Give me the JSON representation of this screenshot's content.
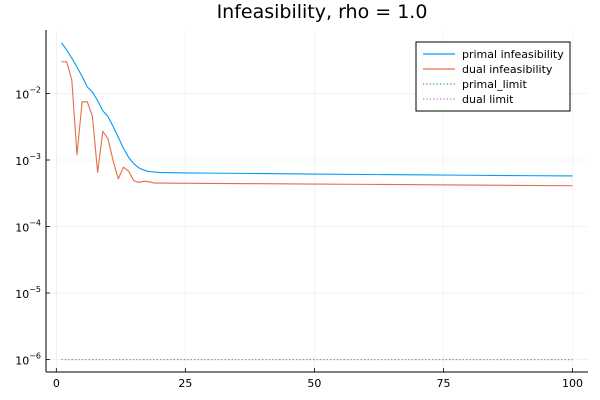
{
  "chart_data": {
    "type": "line",
    "title": "Infeasibility, rho = 1.0",
    "xlabel": "",
    "ylabel": "",
    "xlim": [
      -2,
      103
    ],
    "ylim": [
      6.5e-07,
      0.09
    ],
    "y_scale": "log",
    "grid": true,
    "legend_position": "top-right",
    "x_ticks": [
      {
        "value": 0,
        "label": "0"
      },
      {
        "value": 25,
        "label": "25"
      },
      {
        "value": 50,
        "label": "50"
      },
      {
        "value": 75,
        "label": "75"
      },
      {
        "value": 100,
        "label": "100"
      }
    ],
    "y_ticks": [
      {
        "value": 0.01,
        "base": "10",
        "exp": "−2"
      },
      {
        "value": 0.001,
        "base": "10",
        "exp": "−3"
      },
      {
        "value": 0.0001,
        "base": "10",
        "exp": "−4"
      },
      {
        "value": 1e-05,
        "base": "10",
        "exp": "−5"
      },
      {
        "value": 1e-06,
        "base": "10",
        "exp": "−6"
      }
    ],
    "series": [
      {
        "name": "primal infeasibility",
        "color": "#009AFA",
        "style": "solid",
        "points": [
          [
            1,
            0.058
          ],
          [
            2,
            0.045
          ],
          [
            3,
            0.034
          ],
          [
            4,
            0.025
          ],
          [
            5,
            0.018
          ],
          [
            6,
            0.0125
          ],
          [
            7,
            0.0105
          ],
          [
            8,
            0.0078
          ],
          [
            9,
            0.0055
          ],
          [
            10,
            0.0045
          ],
          [
            11,
            0.0032
          ],
          [
            12,
            0.0022
          ],
          [
            13,
            0.0015
          ],
          [
            14,
            0.0011
          ],
          [
            15,
            0.00088
          ],
          [
            16,
            0.00076
          ],
          [
            17,
            0.0007
          ],
          [
            18,
            0.00067
          ],
          [
            19,
            0.00066
          ],
          [
            20,
            0.00065
          ],
          [
            25,
            0.00064
          ],
          [
            30,
            0.000635
          ],
          [
            40,
            0.000625
          ],
          [
            50,
            0.000615
          ],
          [
            60,
            0.000605
          ],
          [
            70,
            0.000598
          ],
          [
            80,
            0.00059
          ],
          [
            90,
            0.000582
          ],
          [
            100,
            0.000575
          ]
        ]
      },
      {
        "name": "dual infeasibility",
        "color": "#E26F46",
        "style": "solid",
        "points": [
          [
            1,
            0.03
          ],
          [
            2,
            0.03
          ],
          [
            3,
            0.016
          ],
          [
            4,
            0.0012
          ],
          [
            5,
            0.0075
          ],
          [
            6,
            0.0075
          ],
          [
            7,
            0.0045
          ],
          [
            8,
            0.00065
          ],
          [
            9,
            0.0027
          ],
          [
            10,
            0.0021
          ],
          [
            11,
            0.00098
          ],
          [
            12,
            0.00052
          ],
          [
            13,
            0.00078
          ],
          [
            14,
            0.00068
          ],
          [
            15,
            0.00049
          ],
          [
            16,
            0.00046
          ],
          [
            17,
            0.00048
          ],
          [
            18,
            0.00047
          ],
          [
            19,
            0.00045
          ],
          [
            20,
            0.00045
          ],
          [
            30,
            0.000445
          ],
          [
            40,
            0.00044
          ],
          [
            50,
            0.000435
          ],
          [
            60,
            0.00043
          ],
          [
            70,
            0.000425
          ],
          [
            80,
            0.00042
          ],
          [
            90,
            0.000415
          ],
          [
            100,
            0.00041
          ]
        ]
      },
      {
        "name": "primal_limit",
        "color": "#3EA44E",
        "style": "dotted",
        "points": [
          [
            1,
            1e-06
          ],
          [
            100,
            1e-06
          ]
        ]
      },
      {
        "name": "dual limit",
        "color": "#C271D2",
        "style": "dotted",
        "points": [
          [
            1,
            1e-06
          ],
          [
            100,
            1e-06
          ]
        ]
      }
    ]
  }
}
